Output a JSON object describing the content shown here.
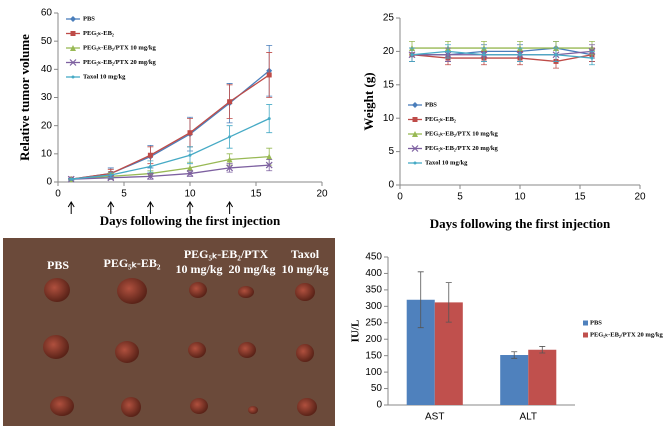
{
  "chart_data": [
    {
      "type": "line",
      "ylabel": "Relative tumor volume",
      "xlabel": "Days following the first injection",
      "x": [
        1,
        4,
        7,
        10,
        13,
        16
      ],
      "xlim": [
        0,
        20
      ],
      "xticks": [
        0,
        5,
        10,
        15,
        20
      ],
      "ylim": [
        0,
        60
      ],
      "yticks": [
        0,
        10,
        20,
        30,
        40,
        50,
        60
      ],
      "legend": "upper left",
      "injection_days": [
        1,
        4,
        7,
        10,
        13
      ],
      "series": [
        {
          "name": "PBS",
          "color": "#4a7ebb",
          "marker": "diamond",
          "values": [
            1,
            3,
            9,
            17,
            28,
            39.5
          ],
          "errors": [
            0.3,
            2,
            4,
            6,
            7,
            9
          ]
        },
        {
          "name": "PEG₅ₖ-EB₂",
          "color": "#be4b48",
          "marker": "square",
          "values": [
            1,
            3,
            9.5,
            17.5,
            28.5,
            38
          ],
          "errors": [
            0.3,
            1.5,
            3,
            5,
            6,
            8
          ]
        },
        {
          "name": "PEG₅ₖ-EB₂/PTX 10 mg/kg",
          "color": "#98b954",
          "marker": "triangle",
          "values": [
            1,
            2,
            3,
            5,
            8,
            9
          ],
          "errors": [
            0.2,
            1,
            1,
            2,
            2,
            3
          ]
        },
        {
          "name": "PEG₅ₖ-EB₂/PTX 20 mg/kg",
          "color": "#7d60a0",
          "marker": "x",
          "values": [
            1,
            1.5,
            2,
            3,
            5,
            6
          ],
          "errors": [
            0.2,
            0.5,
            1,
            1,
            1.5,
            2
          ]
        },
        {
          "name": "Taxol 10 mg/kg",
          "color": "#46aac5",
          "marker": "none",
          "values": [
            1,
            2.5,
            5.5,
            9.5,
            16,
            22.5
          ],
          "errors": [
            0.3,
            1,
            2,
            3,
            4,
            5
          ]
        }
      ]
    },
    {
      "type": "line",
      "ylabel": "Weight (g)",
      "xlabel": "Days following the first injection",
      "x": [
        1,
        4,
        7,
        10,
        13,
        16
      ],
      "xlim": [
        0,
        20
      ],
      "xticks": [
        0,
        5,
        10,
        15,
        20
      ],
      "ylim": [
        0,
        25
      ],
      "yticks": [
        0,
        5,
        10,
        15,
        20,
        25
      ],
      "legend": "lower left",
      "series": [
        {
          "name": "PBS",
          "color": "#4a7ebb",
          "marker": "diamond",
          "values": [
            19.5,
            19.5,
            20,
            20,
            20.5,
            19.5
          ],
          "errors": [
            1,
            1,
            1,
            1,
            1,
            1
          ]
        },
        {
          "name": "PEG₅ₖ-EB₂",
          "color": "#be4b48",
          "marker": "square",
          "values": [
            19.5,
            19,
            19,
            19,
            18.5,
            19.5
          ],
          "errors": [
            1,
            1,
            1,
            1,
            1,
            1
          ]
        },
        {
          "name": "PEG₅ₖ-EB₂/PTX 10 mg/kg",
          "color": "#98b954",
          "marker": "triangle",
          "values": [
            20.5,
            20.5,
            20.5,
            20.5,
            20.5,
            20.5
          ],
          "errors": [
            1,
            1,
            1,
            1,
            1,
            1
          ]
        },
        {
          "name": "PEG₅ₖ-EB₂/PTX 20 mg/kg",
          "color": "#7d60a0",
          "marker": "x",
          "values": [
            19.5,
            19.5,
            19.5,
            19.5,
            19.5,
            20
          ],
          "errors": [
            1,
            1,
            1,
            1,
            1,
            1
          ]
        },
        {
          "name": "Taxol 10 mg/kg",
          "color": "#46aac5",
          "marker": "none",
          "values": [
            19.5,
            20,
            19.5,
            19.5,
            19.5,
            19
          ],
          "errors": [
            1,
            1,
            1,
            1,
            1,
            1
          ]
        }
      ]
    },
    {
      "type": "bar",
      "ylabel": "IU/L",
      "categories": [
        "AST",
        "ALT"
      ],
      "ylim": [
        0,
        450
      ],
      "yticks": [
        0,
        50,
        100,
        150,
        200,
        250,
        300,
        350,
        400,
        450
      ],
      "legend": "right",
      "series": [
        {
          "name": "PBS",
          "color": "#4f81bd",
          "values": [
            320,
            152
          ],
          "errors": [
            85,
            10
          ]
        },
        {
          "name": "PEG₅ₖ-EB₂/PTX 20 mg/kg",
          "color": "#c0504d",
          "values": [
            312,
            168
          ],
          "errors": [
            60,
            10
          ]
        }
      ]
    }
  ],
  "photo": {
    "labels": [
      "PBS",
      "PEG₅ₖ-EB₂",
      "PEG₅ₖ-EB₂/PTX",
      "10 mg/kg",
      "20 mg/kg",
      "Taxol",
      "10 mg/kg"
    ]
  }
}
